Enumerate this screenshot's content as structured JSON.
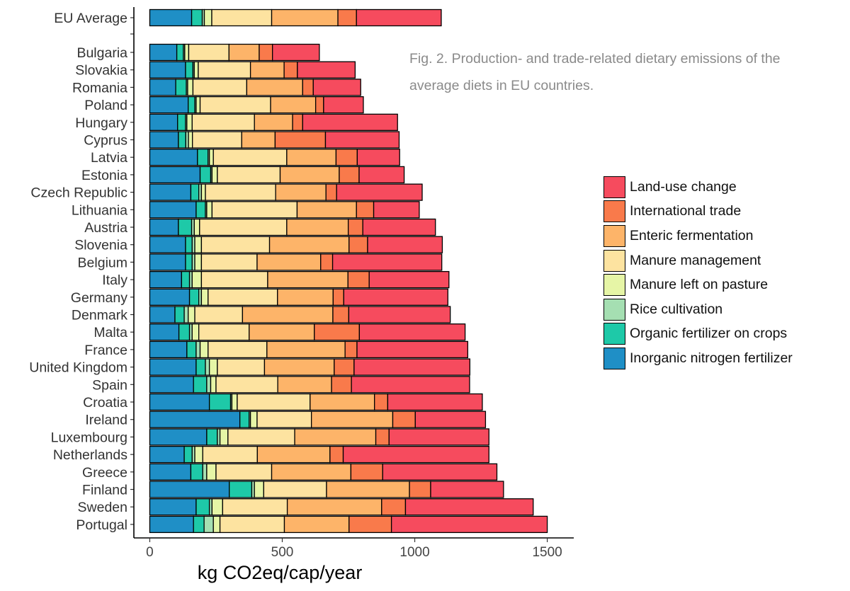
{
  "chart_data": {
    "type": "bar",
    "orientation": "horizontal",
    "stacked": true,
    "xlabel": "kg CO2eq/cap/year",
    "ylabel": "",
    "xlim": [
      -60,
      1600
    ],
    "xticks": [
      0,
      500,
      1000,
      1500
    ],
    "caption": "Fig. 2. Production- and trade-related dietary emissions of the average diets in EU countries.",
    "caption_lines": [
      "Fig. 2. Production- and trade-related dietary emissions of the",
      "average diets in EU countries."
    ],
    "series": [
      {
        "name": "Inorganic nitrogen fertilizer",
        "color": "#1f8fc6"
      },
      {
        "name": "Organic fertilizer on crops",
        "color": "#1ec9a8"
      },
      {
        "name": "Rice cultivation",
        "color": "#a5dfb2"
      },
      {
        "name": "Manure left on pasture",
        "color": "#e6f5a6"
      },
      {
        "name": "Manure management",
        "color": "#fde3a0"
      },
      {
        "name": "Enteric fermentation",
        "color": "#fdb469"
      },
      {
        "name": "International trade",
        "color": "#f97a4b"
      },
      {
        "name": "Land-use change",
        "color": "#f64b5e"
      }
    ],
    "legend_order": [
      "Land-use change",
      "International trade",
      "Enteric fermentation",
      "Manure management",
      "Manure left on pasture",
      "Rice cultivation",
      "Organic fertilizer on crops",
      "Inorganic nitrogen fertilizer"
    ],
    "legend_position": "right",
    "rows": [
      {
        "label": "EU Average",
        "values": [
          158,
          40,
          8,
          28,
          226,
          250,
          70,
          320
        ]
      },
      {
        "label": "Bulgaria",
        "values": [
          102,
          25,
          5,
          15,
          152,
          114,
          50,
          177
        ]
      },
      {
        "label": "Slovakia",
        "values": [
          135,
          28,
          5,
          15,
          197,
          127,
          50,
          218
        ]
      },
      {
        "label": "Romania",
        "values": [
          98,
          40,
          5,
          20,
          203,
          211,
          40,
          179
        ]
      },
      {
        "label": "Poland",
        "values": [
          145,
          25,
          5,
          15,
          266,
          170,
          30,
          150
        ]
      },
      {
        "label": "Hungary",
        "values": [
          105,
          30,
          5,
          20,
          235,
          144,
          38,
          358
        ]
      },
      {
        "label": "Cyprus",
        "values": [
          108,
          28,
          10,
          15,
          186,
          126,
          190,
          278
        ]
      },
      {
        "label": "Latvia",
        "values": [
          180,
          40,
          5,
          15,
          277,
          186,
          80,
          160
        ]
      },
      {
        "label": "Estonia",
        "values": [
          190,
          40,
          5,
          20,
          237,
          223,
          75,
          170
        ]
      },
      {
        "label": "Czech Republic",
        "values": [
          155,
          30,
          10,
          15,
          265,
          190,
          40,
          323
        ]
      },
      {
        "label": "Lithuania",
        "values": [
          175,
          35,
          5,
          20,
          321,
          224,
          65,
          172
        ]
      },
      {
        "label": "Austria",
        "values": [
          108,
          50,
          10,
          20,
          329,
          232,
          55,
          274
        ]
      },
      {
        "label": "Slovenia",
        "values": [
          135,
          25,
          10,
          25,
          257,
          300,
          70,
          282
        ]
      },
      {
        "label": "Belgium",
        "values": [
          135,
          25,
          10,
          25,
          210,
          240,
          45,
          412
        ]
      },
      {
        "label": "Italy",
        "values": [
          120,
          30,
          10,
          35,
          250,
          303,
          80,
          301
        ]
      },
      {
        "label": "Germany",
        "values": [
          150,
          35,
          10,
          25,
          262,
          210,
          40,
          393
        ]
      },
      {
        "label": "Denmark",
        "values": [
          95,
          35,
          15,
          25,
          180,
          341,
          60,
          383
        ]
      },
      {
        "label": "Malta",
        "values": [
          110,
          40,
          10,
          25,
          190,
          246,
          170,
          399
        ]
      },
      {
        "label": "France",
        "values": [
          140,
          35,
          15,
          30,
          222,
          295,
          45,
          418
        ]
      },
      {
        "label": "United Kingdom",
        "values": [
          175,
          35,
          15,
          30,
          178,
          263,
          75,
          437
        ]
      },
      {
        "label": "Spain",
        "values": [
          165,
          50,
          15,
          20,
          233,
          203,
          75,
          446
        ]
      },
      {
        "label": "Croatia",
        "values": [
          225,
          80,
          5,
          20,
          275,
          243,
          50,
          357
        ]
      },
      {
        "label": "Ireland",
        "values": [
          340,
          35,
          5,
          25,
          205,
          307,
          85,
          265
        ]
      },
      {
        "label": "Luxembourg",
        "values": [
          215,
          40,
          10,
          30,
          252,
          306,
          50,
          377
        ]
      },
      {
        "label": "Netherlands",
        "values": [
          130,
          30,
          10,
          30,
          206,
          274,
          50,
          550
        ]
      },
      {
        "label": "Greece",
        "values": [
          155,
          45,
          15,
          35,
          210,
          299,
          120,
          431
        ]
      },
      {
        "label": "Finland",
        "values": [
          300,
          85,
          10,
          35,
          237,
          313,
          80,
          275
        ]
      },
      {
        "label": "Sweden",
        "values": [
          175,
          50,
          10,
          40,
          244,
          356,
          90,
          482
        ]
      },
      {
        "label": "Portugal",
        "values": [
          165,
          40,
          35,
          25,
          243,
          244,
          160,
          588
        ]
      }
    ]
  }
}
